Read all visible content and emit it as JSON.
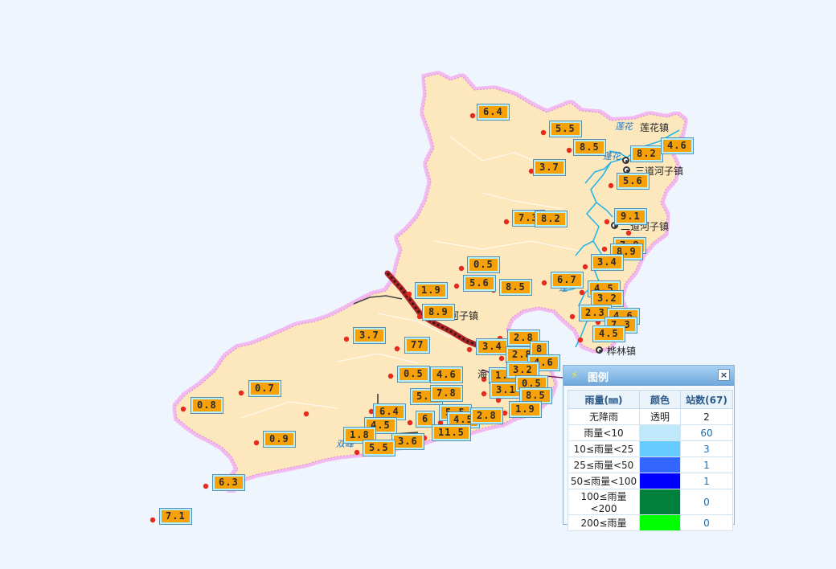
{
  "colors": {
    "land": "#fde8bd",
    "border_glow": "#f2b8ef",
    "river": "#29b5ea",
    "station": "#e82a1e",
    "label_bg": "#f7a10a",
    "label_border": "#b4f0ff"
  },
  "towns": [
    {
      "name": "莲花镇"
    },
    {
      "name": "三道河子镇"
    },
    {
      "name": "二道河子镇"
    },
    {
      "name": "河子镇"
    },
    {
      "name": "桦林镇"
    },
    {
      "name": "海"
    },
    {
      "name": "镇"
    }
  ],
  "rain_labels": [
    "6.4",
    "5.5",
    "8.5",
    "8.2",
    "4.6",
    "3.7",
    "5.6",
    "7.3",
    "8.2",
    "9.1",
    "7.9",
    "8.9",
    "3.4",
    "0.5",
    "5.6",
    "8.5",
    "6.7",
    "4.5",
    "1.9",
    "8.9",
    "3.2",
    "2.3",
    "4.6",
    "7.3",
    "4.5",
    "3.7",
    "77",
    "3.4",
    "2.8",
    "2.8",
    "8",
    "4.6",
    "0.5",
    "4.6",
    "1.6",
    "3.2",
    "0.7",
    "5.9",
    "7.8",
    "3.1",
    "0.5",
    "8.5",
    "0.8",
    "6.4",
    "5.5",
    "6",
    "4.5",
    "2.8",
    "1.9",
    "4.5",
    "1.8",
    "0.9",
    "3.6",
    "11.5",
    "5.5",
    "6.3",
    "7.1"
  ],
  "legend": {
    "title": "图例",
    "close_label": "×",
    "col_rain": "雨量(㎜)",
    "col_color": "颜色",
    "col_count": "站数(67)",
    "rows": [
      {
        "range": "无降雨",
        "color_text": "透明",
        "swatch": "",
        "count": "2"
      },
      {
        "range": "雨量<10",
        "color_text": "",
        "swatch": "#bfe9fb",
        "count": "60"
      },
      {
        "range": "10≤雨量<25",
        "color_text": "",
        "swatch": "#66ccff",
        "count": "3"
      },
      {
        "range": "25≤雨量<50",
        "color_text": "",
        "swatch": "#3366ff",
        "count": "1"
      },
      {
        "range": "50≤雨量<100",
        "color_text": "",
        "swatch": "#0000ff",
        "count": "1"
      },
      {
        "range": "100≤雨量<200",
        "color_text": "",
        "swatch": "#00803a",
        "count": "0"
      },
      {
        "range": "200≤雨量",
        "color_text": "",
        "swatch": "#00ff00",
        "count": "0"
      }
    ]
  }
}
